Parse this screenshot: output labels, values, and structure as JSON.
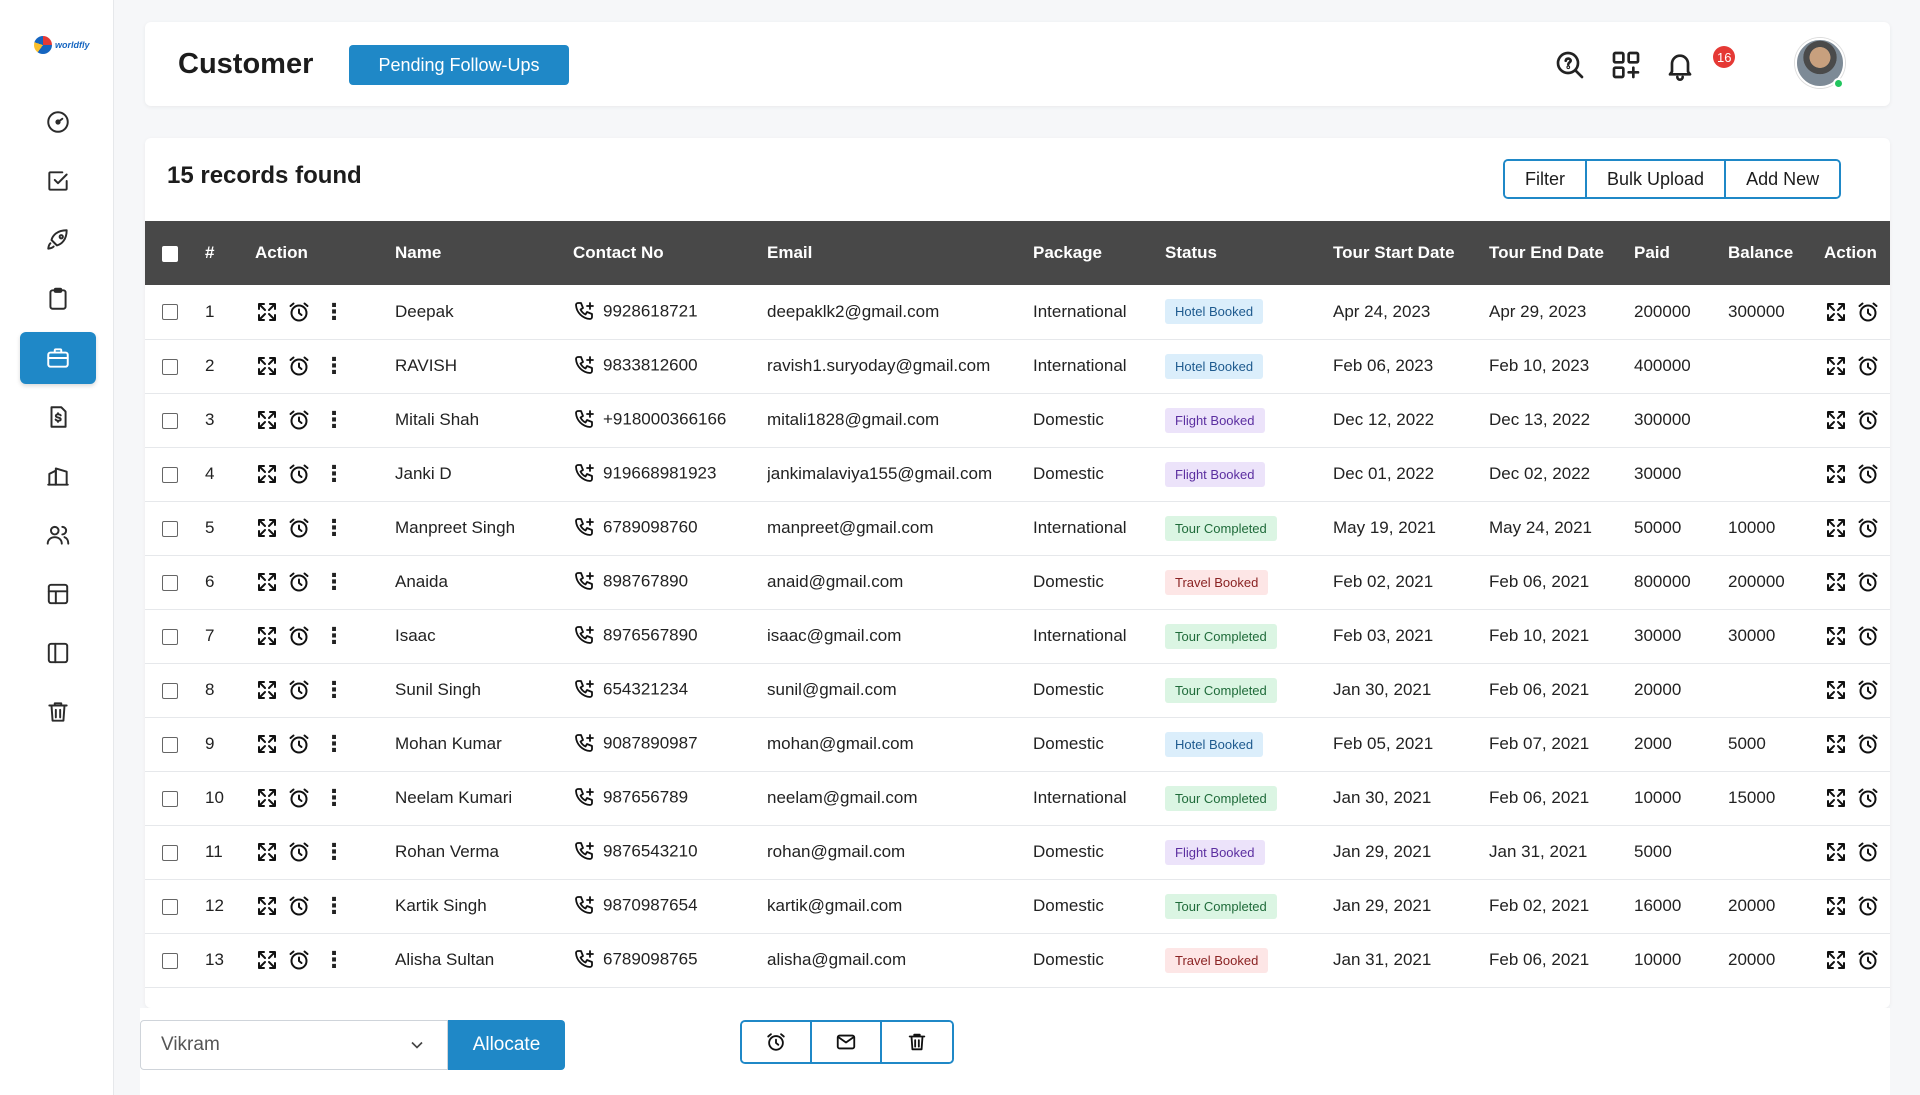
{
  "app": {
    "logo_text": "worldfly"
  },
  "sidebar": {
    "items": [
      {
        "icon": "dashboard-icon",
        "active": false
      },
      {
        "icon": "tasks-icon",
        "active": false
      },
      {
        "icon": "rocket-icon",
        "active": false
      },
      {
        "icon": "clipboard-icon",
        "active": false
      },
      {
        "icon": "briefcase-icon",
        "active": true
      },
      {
        "icon": "invoice-icon",
        "active": false
      },
      {
        "icon": "reports-icon",
        "active": false
      },
      {
        "icon": "users-icon",
        "active": false
      },
      {
        "icon": "table-icon",
        "active": false
      },
      {
        "icon": "sidebar-panel-icon",
        "active": false
      },
      {
        "icon": "trash-icon",
        "active": false
      }
    ]
  },
  "header": {
    "title": "Customer",
    "pending_button": "Pending Follow-Ups",
    "notification_count": "16"
  },
  "main": {
    "records_text": "15 records found",
    "buttons": {
      "filter": "Filter",
      "bulk_upload": "Bulk Upload",
      "add_new": "Add New"
    },
    "columns": [
      "#",
      "Action",
      "Name",
      "Contact No",
      "Email",
      "Package",
      "Status",
      "Tour Start Date",
      "Tour End Date",
      "Paid",
      "Balance",
      "Action"
    ],
    "rows": [
      {
        "num": "1",
        "name": "Deepak",
        "contact": "9928618721",
        "email": "deepaklk2@gmail.com",
        "package": "International",
        "status": "Hotel Booked",
        "start": "Apr 24, 2023",
        "end": "Apr 29, 2023",
        "paid": "200000",
        "balance": "300000"
      },
      {
        "num": "2",
        "name": "RAVISH",
        "contact": "9833812600",
        "email": "ravish1.suryoday@gmail.com",
        "package": "International",
        "status": "Hotel Booked",
        "start": "Feb 06, 2023",
        "end": "Feb 10, 2023",
        "paid": "400000",
        "balance": ""
      },
      {
        "num": "3",
        "name": "Mitali Shah",
        "contact": "+918000366166",
        "email": "mitali1828@gmail.com",
        "package": "Domestic",
        "status": "Flight Booked",
        "start": "Dec 12, 2022",
        "end": "Dec 13, 2022",
        "paid": "300000",
        "balance": ""
      },
      {
        "num": "4",
        "name": "Janki D",
        "contact": "919668981923",
        "email": "jankimalaviya155@gmail.com",
        "package": "Domestic",
        "status": "Flight Booked",
        "start": "Dec 01, 2022",
        "end": "Dec 02, 2022",
        "paid": "30000",
        "balance": ""
      },
      {
        "num": "5",
        "name": "Manpreet Singh",
        "contact": "6789098760",
        "email": "manpreet@gmail.com",
        "package": "International",
        "status": "Tour Completed",
        "start": "May 19, 2021",
        "end": "May 24, 2021",
        "paid": "50000",
        "balance": "10000"
      },
      {
        "num": "6",
        "name": "Anaida",
        "contact": "898767890",
        "email": "anaid@gmail.com",
        "package": "Domestic",
        "status": "Travel Booked",
        "start": "Feb 02, 2021",
        "end": "Feb 06, 2021",
        "paid": "800000",
        "balance": "200000"
      },
      {
        "num": "7",
        "name": "Isaac",
        "contact": "8976567890",
        "email": "isaac@gmail.com",
        "package": "International",
        "status": "Tour Completed",
        "start": "Feb 03, 2021",
        "end": "Feb 10, 2021",
        "paid": "30000",
        "balance": "30000"
      },
      {
        "num": "8",
        "name": "Sunil Singh",
        "contact": "654321234",
        "email": "sunil@gmail.com",
        "package": "Domestic",
        "status": "Tour Completed",
        "start": "Jan 30, 2021",
        "end": "Feb 06, 2021",
        "paid": "20000",
        "balance": ""
      },
      {
        "num": "9",
        "name": "Mohan Kumar",
        "contact": "9087890987",
        "email": "mohan@gmail.com",
        "package": "Domestic",
        "status": "Hotel Booked",
        "start": "Feb 05, 2021",
        "end": "Feb 07, 2021",
        "paid": "2000",
        "balance": "5000"
      },
      {
        "num": "10",
        "name": "Neelam Kumari",
        "contact": "987656789",
        "email": "neelam@gmail.com",
        "package": "International",
        "status": "Tour Completed",
        "start": "Jan 30, 2021",
        "end": "Feb 06, 2021",
        "paid": "10000",
        "balance": "15000"
      },
      {
        "num": "11",
        "name": "Rohan Verma",
        "contact": "9876543210",
        "email": "rohan@gmail.com",
        "package": "Domestic",
        "status": "Flight Booked",
        "start": "Jan 29, 2021",
        "end": "Jan 31, 2021",
        "paid": "5000",
        "balance": ""
      },
      {
        "num": "12",
        "name": "Kartik Singh",
        "contact": "9870987654",
        "email": "kartik@gmail.com",
        "package": "Domestic",
        "status": "Tour Completed",
        "start": "Jan 29, 2021",
        "end": "Feb 02, 2021",
        "paid": "16000",
        "balance": "20000"
      },
      {
        "num": "13",
        "name": "Alisha Sultan",
        "contact": "6789098765",
        "email": "alisha@gmail.com",
        "package": "Domestic",
        "status": "Travel Booked",
        "start": "Jan 31, 2021",
        "end": "Feb 06, 2021",
        "paid": "10000",
        "balance": "20000"
      }
    ]
  },
  "bottom": {
    "assignee_value": "Vikram",
    "allocate_label": "Allocate"
  },
  "colors": {
    "accent": "#1f88c7",
    "header_row": "#484848",
    "notification": "#e53935"
  }
}
